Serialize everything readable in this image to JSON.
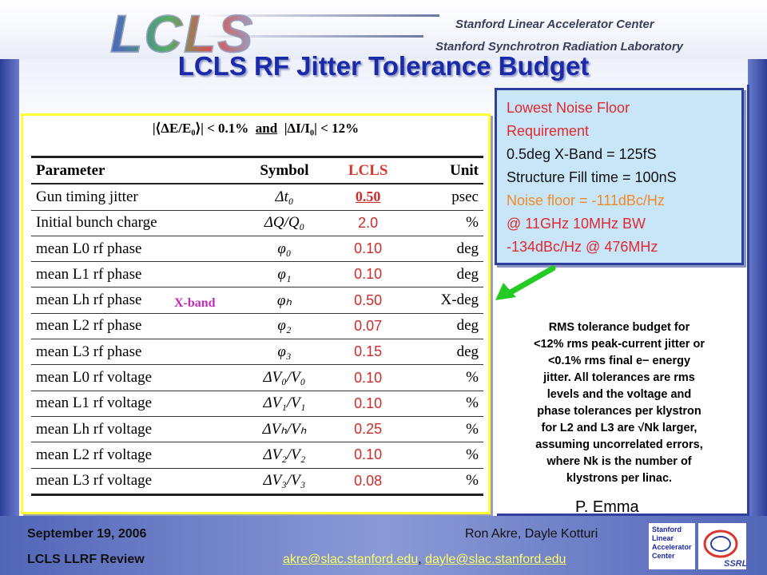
{
  "header": {
    "logo_text": "LCLS",
    "org_line1": "Stanford Linear Accelerator Center",
    "org_line2": "Stanford Synchrotron Radiation Laboratory"
  },
  "slide": {
    "title": "LCLS RF Jitter Tolerance Budget",
    "condition": {
      "part1": "|⟨ΔE/E₀⟩| < 0.1%",
      "and": "and",
      "part2": "|ΔI/I₀| < 12%"
    },
    "table": {
      "columns": [
        "Parameter",
        "Symbol",
        "LCLS",
        "Unit"
      ],
      "rows": [
        {
          "param": "Gun timing jitter",
          "symbol": "Δt₀",
          "value": "0.50",
          "unit": "psec"
        },
        {
          "param": "Initial bunch charge",
          "symbol": "ΔQ/Q₀",
          "value": "2.0",
          "unit": "%"
        },
        {
          "param": "mean L0 rf phase",
          "symbol": "φ₀",
          "value": "0.10",
          "unit": "deg"
        },
        {
          "param": "mean L1 rf phase",
          "symbol": "φ₁",
          "value": "0.10",
          "unit": "deg"
        },
        {
          "param": "mean Lh rf phase",
          "symbol": "φₕ",
          "value": "0.50",
          "unit": "X-deg"
        },
        {
          "param": "mean L2 rf phase",
          "symbol": "φ₂",
          "value": "0.07",
          "unit": "deg"
        },
        {
          "param": "mean L3 rf phase",
          "symbol": "φ₃",
          "value": "0.15",
          "unit": "deg"
        },
        {
          "param": "mean L0 rf voltage",
          "symbol": "ΔV₀/V₀",
          "value": "0.10",
          "unit": "%"
        },
        {
          "param": "mean L1 rf voltage",
          "symbol": "ΔV₁/V₁",
          "value": "0.10",
          "unit": "%"
        },
        {
          "param": "mean Lh rf voltage",
          "symbol": "ΔVₕ/Vₕ",
          "value": "0.25",
          "unit": "%"
        },
        {
          "param": "mean L2 rf voltage",
          "symbol": "ΔV₂/V₂",
          "value": "0.10",
          "unit": "%"
        },
        {
          "param": "mean L3 rf voltage",
          "symbol": "ΔV₃/V₃",
          "value": "0.08",
          "unit": "%"
        }
      ],
      "xband_label": "X-band"
    },
    "noise_box": {
      "line1": "Lowest Noise Floor",
      "line2": "Requirement",
      "line3": "0.5deg X-Band = 125fS",
      "line4": "Structure Fill time = 100nS",
      "line5": "Noise floor = -111dBc/Hz",
      "line6": "@ 11GHz  10MHz BW",
      "line7": "-134dBc/Hz @ 476MHz"
    },
    "notes": {
      "line1": "RMS tolerance budget for",
      "line2": "<12% rms peak-current jitter or",
      "line3": "<0.1% rms final e− energy",
      "line4": "jitter.  All tolerances are rms",
      "line5": "levels and the voltage and",
      "line6": "phase tolerances per klystron",
      "line7": "for L2 and L3 are √Nk larger,",
      "line8": "assuming uncorrelated errors,",
      "line9": "where Nk is the number of",
      "line10": "klystrons per linac."
    },
    "author": "P. Emma"
  },
  "footer": {
    "date": "September 19, 2006",
    "event": "LCLS LLRF Review",
    "authors": "Ron Akre, Dayle Kotturi",
    "email1": "akre@slac.stanford.edu",
    "separator": ", ",
    "email2": "dayle@slac.stanford.edu",
    "badge_lines": [
      "Stanford",
      "Linear",
      "Accelerator",
      "Center"
    ],
    "ssrl_text": "SSRL"
  },
  "colors": {
    "title": "#1a2aa8",
    "lcls_header": "#d8362f",
    "noise_box_bg": "#c9e6f8",
    "xband": "#c02ab5",
    "arrow": "#22cc22"
  }
}
